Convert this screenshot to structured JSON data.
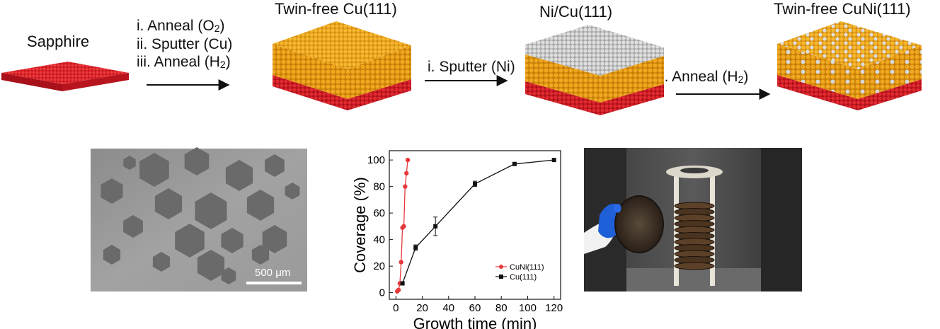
{
  "schematic": {
    "stages": [
      {
        "label": "Sapphire"
      },
      {
        "label": "Twin-free Cu(111)"
      },
      {
        "label": "Ni/Cu(111)"
      },
      {
        "label": "Twin-free CuNi(111)"
      }
    ],
    "step1": {
      "line1_pre": "i. Anneal (O",
      "line1_sub": "2",
      "line1_post": ")",
      "line2": "ii. Sputter (Cu)",
      "line3_pre": "iii. Anneal (H",
      "line3_sub": "2",
      "line3_post": ")"
    },
    "step2": {
      "label": "i. Sputter (Ni)"
    },
    "step3": {
      "pre": "i. Anneal (H",
      "sub": "2",
      "post": ")"
    },
    "colors": {
      "sapphire": "#d4202a",
      "copper": "#f0a820",
      "nickel": "#c8c8c8",
      "arrow": "#111111"
    }
  },
  "micrograph": {
    "scale_bar_label": "500 μm"
  },
  "chart_data": {
    "type": "line",
    "xlabel": "Growth time (min)",
    "ylabel": "Coverage (%)",
    "xlim": [
      -5,
      125
    ],
    "ylim": [
      -5,
      107
    ],
    "xticks": [
      0,
      20,
      40,
      60,
      80,
      100,
      120
    ],
    "yticks": [
      0,
      20,
      40,
      60,
      80,
      100
    ],
    "legend_position": "bottom-right",
    "series": [
      {
        "name": "CuNi(111)",
        "color": "#e8383c",
        "marker": "circle",
        "x": [
          1,
          2,
          3,
          4,
          5,
          6,
          7,
          8,
          9
        ],
        "y": [
          1,
          2,
          7,
          23,
          49,
          50,
          80,
          90,
          100
        ],
        "err": [
          0,
          0,
          0,
          0,
          0,
          0,
          0,
          0,
          0
        ]
      },
      {
        "name": "Cu(111)",
        "color": "#111111",
        "marker": "square",
        "x": [
          5,
          15,
          30,
          60,
          90,
          120
        ],
        "y": [
          7,
          34,
          50,
          82,
          97,
          100
        ],
        "err": [
          1,
          2,
          7,
          2,
          1,
          0
        ]
      }
    ]
  },
  "photo": {
    "description": "wafer holder photo"
  }
}
